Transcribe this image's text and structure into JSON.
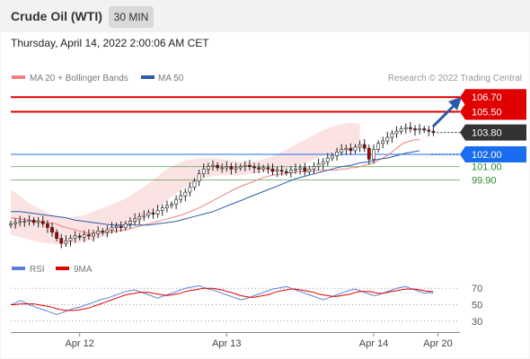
{
  "header": {
    "title": "Crude Oil (WTI)",
    "timeframe": "30 MIN",
    "timestamp": "Thursday, April 14, 2022 2:00:06 AM CET"
  },
  "legend": [
    {
      "label": "MA 20 + Bollinger Bands",
      "color": "#f08080"
    },
    {
      "label": "MA 50",
      "color": "#2b5ba8"
    }
  ],
  "copyright": "Research © 2022 Trading Central",
  "chart_data": [
    {
      "type": "candlestick",
      "ylim": [
        93.6,
        107.6
      ],
      "x_tick_labels": [
        "Apr 12",
        "Apr 13",
        "Apr 14",
        "Apr 20"
      ],
      "x_tick_positions": [
        15,
        47,
        79,
        93
      ],
      "x_range": [
        0,
        97
      ],
      "levels": [
        {
          "value": 106.7,
          "label": "106.70",
          "color": "#e00000",
          "kind": "resistance"
        },
        {
          "value": 105.5,
          "label": "105.50",
          "color": "#e00000",
          "kind": "resistance"
        },
        {
          "value": 103.8,
          "label": "103.80",
          "color": "#333333",
          "kind": "last"
        },
        {
          "value": 102.0,
          "label": "102.00",
          "color": "#1a6cf0",
          "kind": "pivot"
        },
        {
          "value": 101.0,
          "label": "101.00",
          "color": "#2e8b2e",
          "kind": "support"
        },
        {
          "value": 99.9,
          "label": "99.90",
          "color": "#2e8b2e",
          "kind": "support"
        }
      ],
      "close": [
        96.3,
        96.4,
        96.5,
        96.5,
        96.6,
        96.4,
        96.5,
        96.3,
        96.0,
        95.6,
        95.1,
        94.7,
        94.9,
        95.1,
        95.3,
        95.2,
        95.4,
        95.3,
        95.5,
        95.7,
        95.6,
        95.8,
        96.0,
        96.1,
        96.0,
        96.3,
        96.5,
        96.7,
        96.9,
        97.0,
        97.2,
        97.1,
        97.4,
        97.6,
        97.8,
        97.9,
        98.3,
        98.6,
        98.9,
        99.3,
        99.8,
        100.4,
        100.8,
        101.0,
        101.1,
        100.9,
        100.9,
        101.0,
        100.8,
        100.9,
        101.0,
        101.1,
        101.0,
        100.9,
        100.8,
        100.9,
        100.8,
        100.6,
        100.7,
        100.6,
        100.5,
        100.7,
        100.8,
        100.9,
        100.6,
        100.8,
        101.0,
        101.2,
        101.4,
        101.7,
        101.9,
        102.2,
        102.4,
        102.5,
        102.3,
        102.6,
        102.8,
        102.5,
        101.6,
        102.4,
        102.9,
        103.1,
        103.4,
        103.7,
        103.9,
        104.1,
        104.2,
        104.1,
        104.0,
        104.1,
        104.0,
        103.9,
        103.8
      ],
      "ma20": [
        96.8,
        96.7,
        96.6,
        96.5,
        96.4,
        96.3,
        96.1,
        96.0,
        95.9,
        95.8,
        95.7,
        95.6,
        95.5,
        95.6,
        95.6,
        95.7,
        95.8,
        96.0,
        96.2,
        96.4,
        96.6,
        96.8,
        97.0,
        97.3,
        97.6,
        98.0,
        98.4,
        98.8,
        99.2,
        99.5,
        99.8,
        100.1,
        100.3,
        100.4,
        100.5,
        100.6,
        100.6,
        100.7,
        100.7,
        100.7,
        100.8,
        100.8,
        100.9,
        100.9,
        101.0,
        101.1,
        101.2,
        101.3,
        101.5,
        101.7,
        101.9,
        102.2,
        102.5,
        102.8,
        103.0,
        103.1,
        103.2,
        103.2
      ],
      "ma20_x": [
        0,
        2,
        4,
        6,
        8,
        10,
        11,
        12,
        13,
        14,
        15,
        16,
        17,
        19,
        21,
        23,
        25,
        27,
        29,
        31,
        33,
        35,
        37,
        39,
        41,
        43,
        45,
        47,
        49,
        51,
        53,
        55,
        57,
        59,
        61,
        63,
        65,
        67,
        69,
        71,
        72,
        73,
        74,
        75,
        76,
        77,
        78,
        79,
        80,
        81,
        82,
        83,
        84,
        85,
        86,
        87,
        88,
        89
      ],
      "ma50": [
        97.3,
        97.3,
        97.2,
        97.1,
        97.0,
        96.9,
        96.8,
        96.6,
        96.5,
        96.4,
        96.3,
        96.2,
        96.2,
        96.2,
        96.2,
        96.2,
        96.3,
        96.4,
        96.5,
        96.7,
        96.9,
        97.1,
        97.3,
        97.6,
        97.9,
        98.2,
        98.5,
        98.8,
        99.1,
        99.4,
        99.7,
        100.0,
        100.2,
        100.4,
        100.6,
        100.8,
        101.0,
        101.1,
        101.3,
        101.4,
        101.6,
        101.7,
        101.9,
        102.1,
        102.3
      ],
      "ma50_x": [
        0,
        2,
        4,
        6,
        8,
        10,
        12,
        14,
        16,
        18,
        20,
        22,
        24,
        26,
        28,
        30,
        32,
        34,
        36,
        38,
        40,
        42,
        44,
        46,
        48,
        50,
        52,
        54,
        56,
        58,
        60,
        62,
        64,
        66,
        68,
        70,
        72,
        74,
        76,
        78,
        80,
        82,
        84,
        86,
        89
      ],
      "bb_upper": [
        99.1,
        98.6,
        98.0,
        97.6,
        97.2,
        96.9,
        96.8,
        96.9,
        97.0,
        97.3,
        97.6,
        97.9,
        98.2,
        98.6,
        99.1,
        99.6,
        100.2,
        100.8,
        101.2,
        101.5,
        101.6,
        101.7,
        101.7,
        101.6,
        101.5,
        101.4,
        101.4,
        101.5,
        101.7,
        102.0,
        102.4,
        102.8,
        103.2,
        103.6,
        104.0,
        104.3,
        104.5,
        104.6,
        104.5
      ],
      "bb_lower": [
        95.4,
        95.2,
        95.0,
        94.8,
        94.7,
        94.6,
        94.6,
        94.7,
        94.8,
        95.0,
        95.2,
        95.5,
        95.8,
        96.1,
        96.5,
        97.0,
        97.6,
        98.2,
        98.8,
        99.3,
        99.7,
        100.0,
        100.2,
        100.3,
        100.3,
        100.3,
        100.4,
        100.5,
        100.6,
        100.7,
        100.8,
        101.0,
        101.3,
        101.6,
        101.9,
        102.1,
        102.3,
        102.3,
        102.4
      ],
      "bb_x": [
        0,
        2,
        4,
        6,
        8,
        10,
        12,
        14,
        16,
        18,
        20,
        22,
        24,
        26,
        28,
        30,
        32,
        34,
        36,
        38,
        40,
        42,
        44,
        46,
        48,
        50,
        52,
        54,
        56,
        58,
        60,
        62,
        64,
        66,
        68,
        70,
        72,
        74,
        76
      ]
    },
    {
      "type": "line",
      "legend": [
        {
          "label": "RSI",
          "color": "#5b7fd6"
        },
        {
          "label": "9MA",
          "color": "#e00000"
        }
      ],
      "ylim": [
        20,
        80
      ],
      "y_ticks": [
        70,
        50,
        30
      ],
      "x_range": [
        0,
        97
      ],
      "rsi": [
        50,
        52,
        55,
        53,
        50,
        48,
        46,
        44,
        42,
        40,
        38,
        40,
        42,
        44,
        46,
        47,
        49,
        51,
        53,
        55,
        57,
        58,
        60,
        62,
        64,
        66,
        67,
        68,
        66,
        64,
        62,
        60,
        58,
        60,
        62,
        64,
        66,
        68,
        70,
        71,
        72,
        73,
        71,
        69,
        68,
        66,
        64,
        62,
        60,
        58,
        56,
        57,
        59,
        61,
        63,
        65,
        67,
        69,
        70,
        71,
        72,
        70,
        68,
        66,
        64,
        62,
        60,
        58,
        56,
        58,
        60,
        62,
        64,
        66,
        68,
        69,
        67,
        65,
        63,
        61,
        62,
        64,
        66,
        68,
        70,
        71,
        72,
        70,
        68,
        66,
        64,
        65,
        64
      ],
      "rsi_9ma": [
        50,
        50,
        51,
        51,
        51,
        51,
        50,
        49,
        48,
        47,
        45,
        44,
        43,
        43,
        43,
        44,
        45,
        46,
        48,
        50,
        52,
        54,
        56,
        58,
        60,
        62,
        63,
        64,
        65,
        65,
        65,
        64,
        63,
        62,
        61,
        62,
        63,
        64,
        66,
        67,
        68,
        69,
        70,
        70,
        70,
        69,
        68,
        66,
        65,
        63,
        61,
        60,
        59,
        59,
        60,
        61,
        62,
        64,
        66,
        67,
        68,
        69,
        69,
        68,
        67,
        66,
        65,
        63,
        62,
        61,
        60,
        60,
        61,
        62,
        63,
        65,
        66,
        66,
        66,
        65,
        64,
        64,
        65,
        66,
        67,
        68,
        69,
        69,
        69,
        68,
        67,
        66,
        66
      ]
    }
  ]
}
